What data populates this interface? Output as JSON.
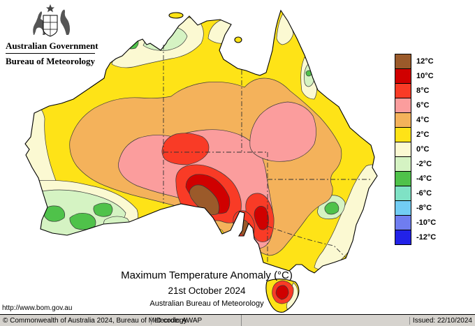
{
  "header": {
    "gov_title": "Australian Government",
    "agency": "Bureau of Meteorology"
  },
  "title_block": {
    "line1": "Maximum Temperature Anomaly (°C)",
    "line2": "21st October 2024",
    "line3": "Australian Bureau of Meteorology"
  },
  "legend": {
    "items": [
      {
        "label": "12°C",
        "color": "#9b5a2a"
      },
      {
        "label": "10°C",
        "color": "#d00000"
      },
      {
        "label": "8°C",
        "color": "#f93b26"
      },
      {
        "label": "6°C",
        "color": "#fb9d9d"
      },
      {
        "label": "4°C",
        "color": "#f4b25b"
      },
      {
        "label": "2°C",
        "color": "#fee317"
      },
      {
        "label": "0°C",
        "color": "#fbf9d2"
      },
      {
        "label": "-2°C",
        "color": "#d5f3c3"
      },
      {
        "label": "-4°C",
        "color": "#4fc24a"
      },
      {
        "label": "-6°C",
        "color": "#7fe2c5"
      },
      {
        "label": "-8°C",
        "color": "#72cdf4"
      },
      {
        "label": "-10°C",
        "color": "#6f7df0"
      },
      {
        "label": "-12°C",
        "color": "#2222e8"
      }
    ]
  },
  "footer": {
    "url": "http://www.bom.gov.au",
    "copyright": "© Commonwealth of Australia 2024, Bureau of Meteorology",
    "id_code": "ID code: AWAP",
    "issued": "Issued: 22/10/2024"
  },
  "map_summary": {
    "type": "filled-contour-anomaly-map",
    "region": "Australia",
    "units": "°C",
    "scale_range": [
      -12,
      12
    ],
    "max_anomaly_area": "southern central South Australia, above +12°C (brown)",
    "min_anomaly_area": "southwest Western Australia and scattered coastal spots, -4 to -2°C (green)"
  }
}
